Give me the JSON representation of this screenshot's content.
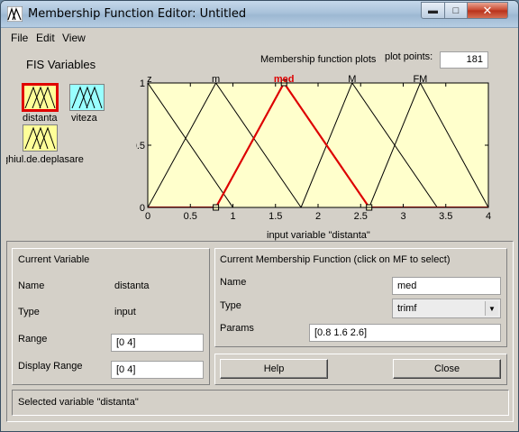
{
  "window": {
    "title": "Membership Function Editor: Untitled"
  },
  "menu": [
    "File",
    "Edit",
    "View"
  ],
  "fis_variables": {
    "title": "FIS Variables",
    "items": [
      {
        "label": "distanta",
        "selected": true,
        "color": "#ffff99",
        "kind": "input"
      },
      {
        "label": "viteza",
        "selected": false,
        "color": "#99ffff",
        "kind": "input"
      },
      {
        "label": "ghiul.de.deplasare",
        "selected": false,
        "color": "#ffff99",
        "kind": "output"
      }
    ]
  },
  "plot": {
    "title": "Membership function plots",
    "plot_points_label": "plot points:",
    "plot_points": "181",
    "xlabel": "input variable \"distanta\""
  },
  "chart_data": {
    "type": "line",
    "xlim": [
      0,
      4
    ],
    "ylim": [
      0,
      1
    ],
    "xticks": [
      "0",
      "0.5",
      "1",
      "1.5",
      "2",
      "2.5",
      "3",
      "3.5",
      "4"
    ],
    "yticks": [
      "0",
      "0.5",
      "1"
    ],
    "series": [
      {
        "name": "z",
        "params": [
          -0.8,
          0,
          1.0
        ],
        "color": "#000000",
        "selected": false
      },
      {
        "name": "m",
        "params": [
          0,
          0.8,
          1.8
        ],
        "color": "#000000",
        "selected": false
      },
      {
        "name": "med",
        "params": [
          0.8,
          1.6,
          2.6
        ],
        "color": "#dd0000",
        "selected": true
      },
      {
        "name": "M",
        "params": [
          1.8,
          2.4,
          3.4
        ],
        "color": "#000000",
        "selected": false
      },
      {
        "name": "FM",
        "params": [
          2.6,
          3.2,
          4.0
        ],
        "color": "#000000",
        "selected": false
      }
    ],
    "background": "#ffffcc"
  },
  "current_variable": {
    "title": "Current Variable",
    "name_label": "Name",
    "name_value": "distanta",
    "type_label": "Type",
    "type_value": "input",
    "range_label": "Range",
    "range_value": "[0 4]",
    "display_range_label": "Display Range",
    "display_range_value": "[0 4]"
  },
  "current_mf": {
    "title": "Current Membership Function (click on MF to select)",
    "name_label": "Name",
    "name_value": "med",
    "type_label": "Type",
    "type_value": "trimf",
    "params_label": "Params",
    "params_value": "[0.8 1.6 2.6]"
  },
  "buttons": {
    "help": "Help",
    "close": "Close"
  },
  "status": "Selected variable \"distanta\""
}
